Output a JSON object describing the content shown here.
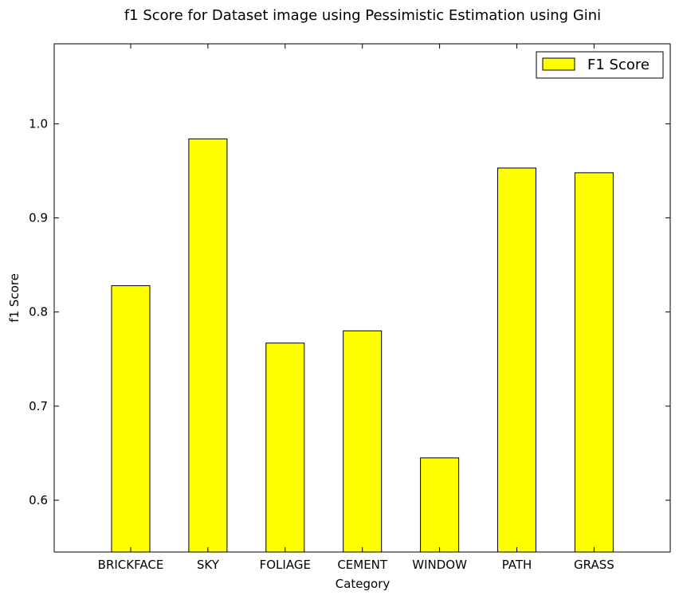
{
  "chart_data": {
    "type": "bar",
    "title": "f1 Score for Dataset image using Pessimistic Estimation using Gini",
    "xlabel": "Category",
    "ylabel": "f1 Score",
    "categories": [
      "BRICKFACE",
      "SKY",
      "FOLIAGE",
      "CEMENT",
      "WINDOW",
      "PATH",
      "GRASS"
    ],
    "series": [
      {
        "name": "F1 Score",
        "values": [
          0.828,
          0.984,
          0.767,
          0.78,
          0.645,
          0.953,
          0.948
        ],
        "color": "#ffff00"
      }
    ],
    "ylim": [
      0.545,
      1.085
    ],
    "yticks": [
      0.6,
      0.7,
      0.8,
      0.9,
      1.0
    ],
    "ytick_labels": [
      "0.6",
      "0.7",
      "0.8",
      "0.9",
      "1.0"
    ],
    "grid": false,
    "legend": "top-right"
  }
}
